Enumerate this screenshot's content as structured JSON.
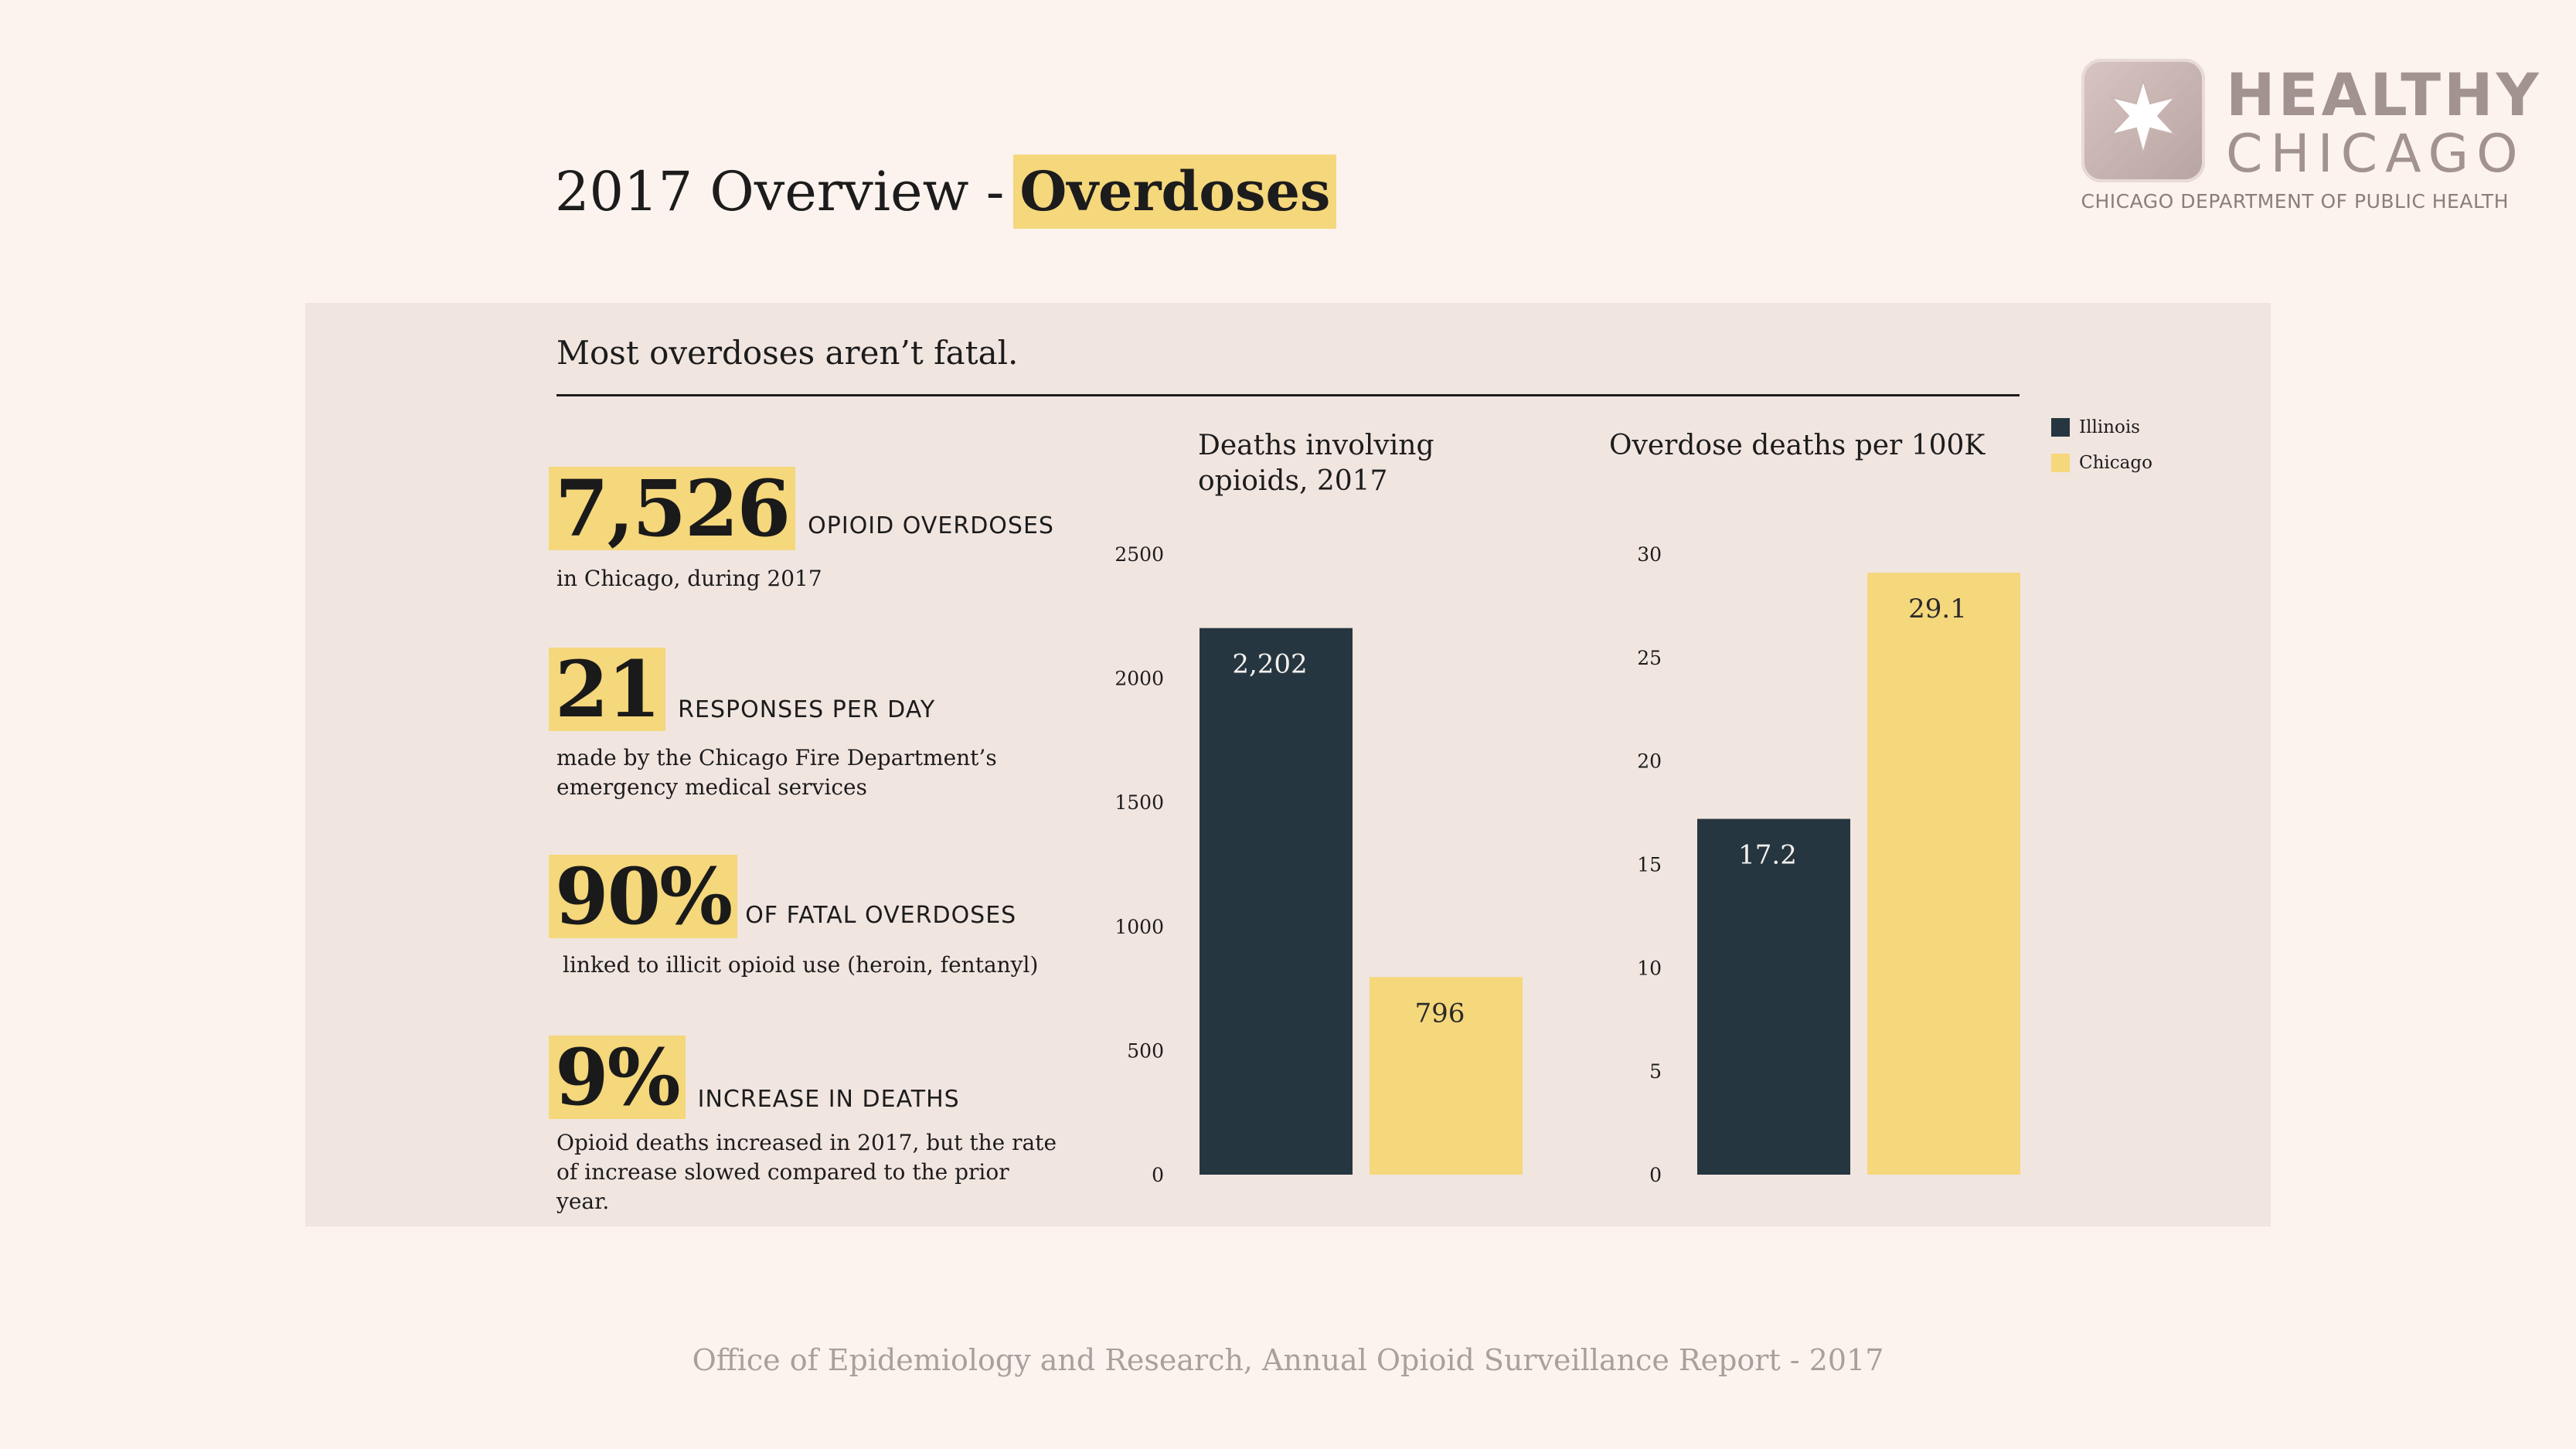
{
  "header": {
    "title_prefix": "2017 Overview - ",
    "title_highlight": "Overdoses"
  },
  "logo": {
    "line1": "HEALTHY",
    "line2": "CHICAGO",
    "department": "CHICAGO DEPARTMENT OF PUBLIC HEALTH",
    "icon": "star-icon"
  },
  "panel": {
    "heading": "Most overdoses aren’t fatal."
  },
  "stats": [
    {
      "value": "7,526",
      "caption": "OPIOID OVERDOSES",
      "description": "in Chicago, during 2017"
    },
    {
      "value": "21",
      "caption": "RESPONSES PER DAY",
      "description": "made by the Chicago Fire Department’s emergency medical services"
    },
    {
      "value": "90%",
      "caption": "OF FATAL OVERDOSES",
      "description": "linked to illicit opioid use (heroin, fentanyl)"
    },
    {
      "value": "9%",
      "caption": "INCREASE IN DEATHS",
      "description": "Opioid deaths increased in 2017, but the rate of increase slowed compared to the prior year."
    }
  ],
  "legend": {
    "items": [
      {
        "label": "Illinois",
        "color": "#263640"
      },
      {
        "label": "Chicago",
        "color": "#f5d77c"
      }
    ]
  },
  "chart_data": [
    {
      "type": "bar",
      "title": "Deaths involving opioids, 2017",
      "categories": [
        "Illinois",
        "Chicago"
      ],
      "values": [
        2202,
        796
      ],
      "data_labels": [
        "2,202",
        "796"
      ],
      "yticks": [
        0,
        500,
        1000,
        1500,
        2000,
        2500
      ],
      "ylim": [
        0,
        2500
      ],
      "grid": false,
      "legend": "top-right"
    },
    {
      "type": "bar",
      "title": "Overdose deaths per 100K",
      "categories": [
        "Illinois",
        "Chicago"
      ],
      "values": [
        17.2,
        29.1
      ],
      "data_labels": [
        "17.2",
        "29.1"
      ],
      "yticks": [
        0,
        5,
        10,
        15,
        20,
        25,
        30
      ],
      "ylim": [
        0,
        30
      ],
      "grid": false,
      "legend": "top-right"
    }
  ],
  "footer": {
    "text": "Office of Epidemiology and Research, Annual Opioid Surveillance Report - 2017"
  }
}
